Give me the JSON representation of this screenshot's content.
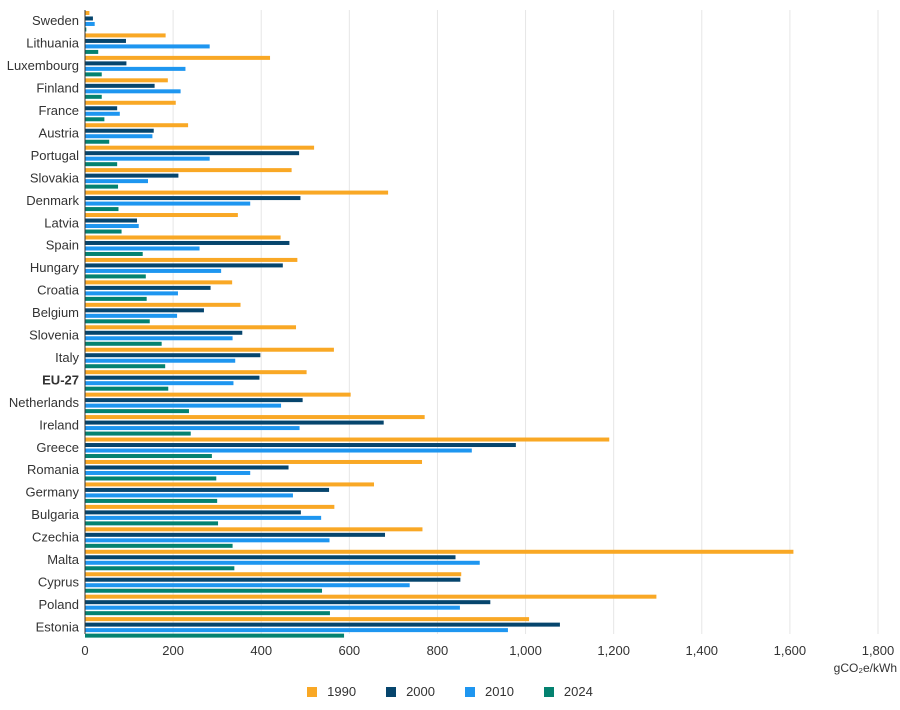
{
  "chart_data": {
    "type": "bar",
    "orientation": "horizontal",
    "categories": [
      "Sweden",
      "Lithuania",
      "Luxembourg",
      "Finland",
      "France",
      "Austria",
      "Portugal",
      "Slovakia",
      "Denmark",
      "Latvia",
      "Spain",
      "Hungary",
      "Croatia",
      "Belgium",
      "Slovenia",
      "Italy",
      "EU-27",
      "Netherlands",
      "Ireland",
      "Greece",
      "Romania",
      "Germany",
      "Bulgaria",
      "Czechia",
      "Malta",
      "Cyprus",
      "Poland",
      "Estonia"
    ],
    "highlight_category": "EU-27",
    "series": [
      {
        "name": "1990",
        "color": "#F9A825",
        "values": [
          10,
          183,
          420,
          188,
          206,
          234,
          520,
          469,
          688,
          347,
          444,
          482,
          334,
          353,
          479,
          565,
          503,
          603,
          771,
          1190,
          765,
          656,
          566,
          766,
          1608,
          854,
          1297,
          1008
        ]
      },
      {
        "name": "2000",
        "color": "#06456D",
        "values": [
          18,
          93,
          94,
          158,
          73,
          156,
          486,
          212,
          489,
          118,
          464,
          449,
          285,
          270,
          357,
          398,
          396,
          494,
          678,
          978,
          462,
          554,
          490,
          681,
          841,
          852,
          920,
          1078
        ]
      },
      {
        "name": "2010",
        "color": "#1E96F0",
        "values": [
          22,
          283,
          228,
          217,
          79,
          153,
          283,
          143,
          375,
          122,
          260,
          309,
          211,
          209,
          335,
          341,
          337,
          445,
          487,
          878,
          375,
          472,
          536,
          555,
          896,
          737,
          851,
          960
        ]
      },
      {
        "name": "2024",
        "color": "#048270",
        "values": [
          3,
          30,
          38,
          38,
          44,
          55,
          73,
          75,
          76,
          83,
          131,
          138,
          140,
          147,
          174,
          182,
          189,
          236,
          240,
          288,
          298,
          300,
          302,
          335,
          339,
          538,
          556,
          588
        ]
      }
    ],
    "xlabel": "gCO₂e/kWh",
    "xlim": [
      0,
      1800
    ],
    "xticks": [
      0,
      200,
      400,
      600,
      800,
      1000,
      1200,
      1400,
      1600,
      1800
    ],
    "xtick_labels": [
      "0",
      "200",
      "400",
      "600",
      "800",
      "1,000",
      "1,200",
      "1,400",
      "1,600",
      "1,800"
    ],
    "grid": true,
    "legend_position": "bottom"
  }
}
